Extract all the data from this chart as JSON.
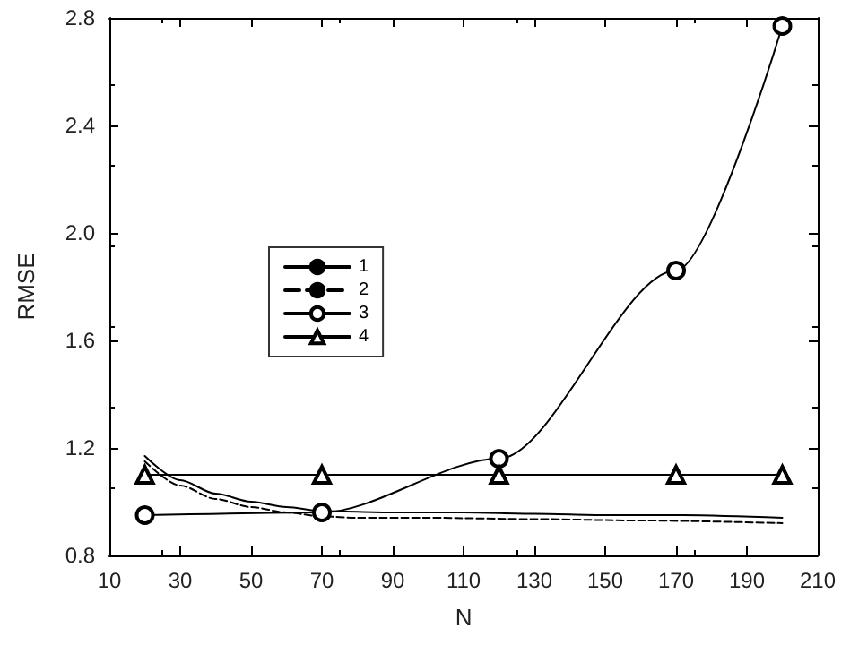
{
  "chart_data": {
    "type": "line",
    "xlabel": "N",
    "ylabel": "RMSE",
    "xlim": [
      10,
      210
    ],
    "xticks": [
      10,
      30,
      50,
      70,
      90,
      110,
      130,
      150,
      170,
      190,
      210
    ],
    "ylim": [
      0.8,
      2.8
    ],
    "yticks": [
      0.8,
      1.2,
      1.6,
      {
        "value": 2,
        "label": "2.0"
      },
      2.4,
      2.8
    ],
    "grid": false,
    "legend": "center left",
    "series": [
      {
        "name": "1",
        "color": "#000000",
        "line_style": "solid",
        "marker": "none",
        "x": [
          20,
          30,
          40,
          50,
          60,
          70,
          90,
          110,
          130,
          150,
          170,
          200
        ],
        "values": [
          1.17,
          1.08,
          1.03,
          1.0,
          0.98,
          0.965,
          0.96,
          0.96,
          0.955,
          0.95,
          0.95,
          0.94
        ]
      },
      {
        "name": "2",
        "color": "#000000",
        "line_style": "dashed",
        "marker": "none",
        "x": [
          20,
          30,
          40,
          50,
          60,
          70,
          80,
          100,
          130,
          160,
          200
        ],
        "values": [
          1.15,
          1.06,
          1.01,
          0.98,
          0.96,
          0.945,
          0.94,
          0.94,
          0.935,
          0.93,
          0.92
        ]
      },
      {
        "name": "3",
        "color": "#000000",
        "line_style": "solid",
        "marker": "circle",
        "x": [
          20,
          70,
          120,
          170,
          200
        ],
        "values": [
          0.95,
          0.96,
          1.16,
          1.86,
          2.77
        ]
      },
      {
        "name": "4",
        "color": "#000000",
        "line_style": "solid",
        "marker": "triangle",
        "x": [
          20,
          70,
          120,
          170,
          200
        ],
        "values": [
          1.1,
          1.1,
          1.1,
          1.1,
          1.1
        ]
      }
    ]
  }
}
